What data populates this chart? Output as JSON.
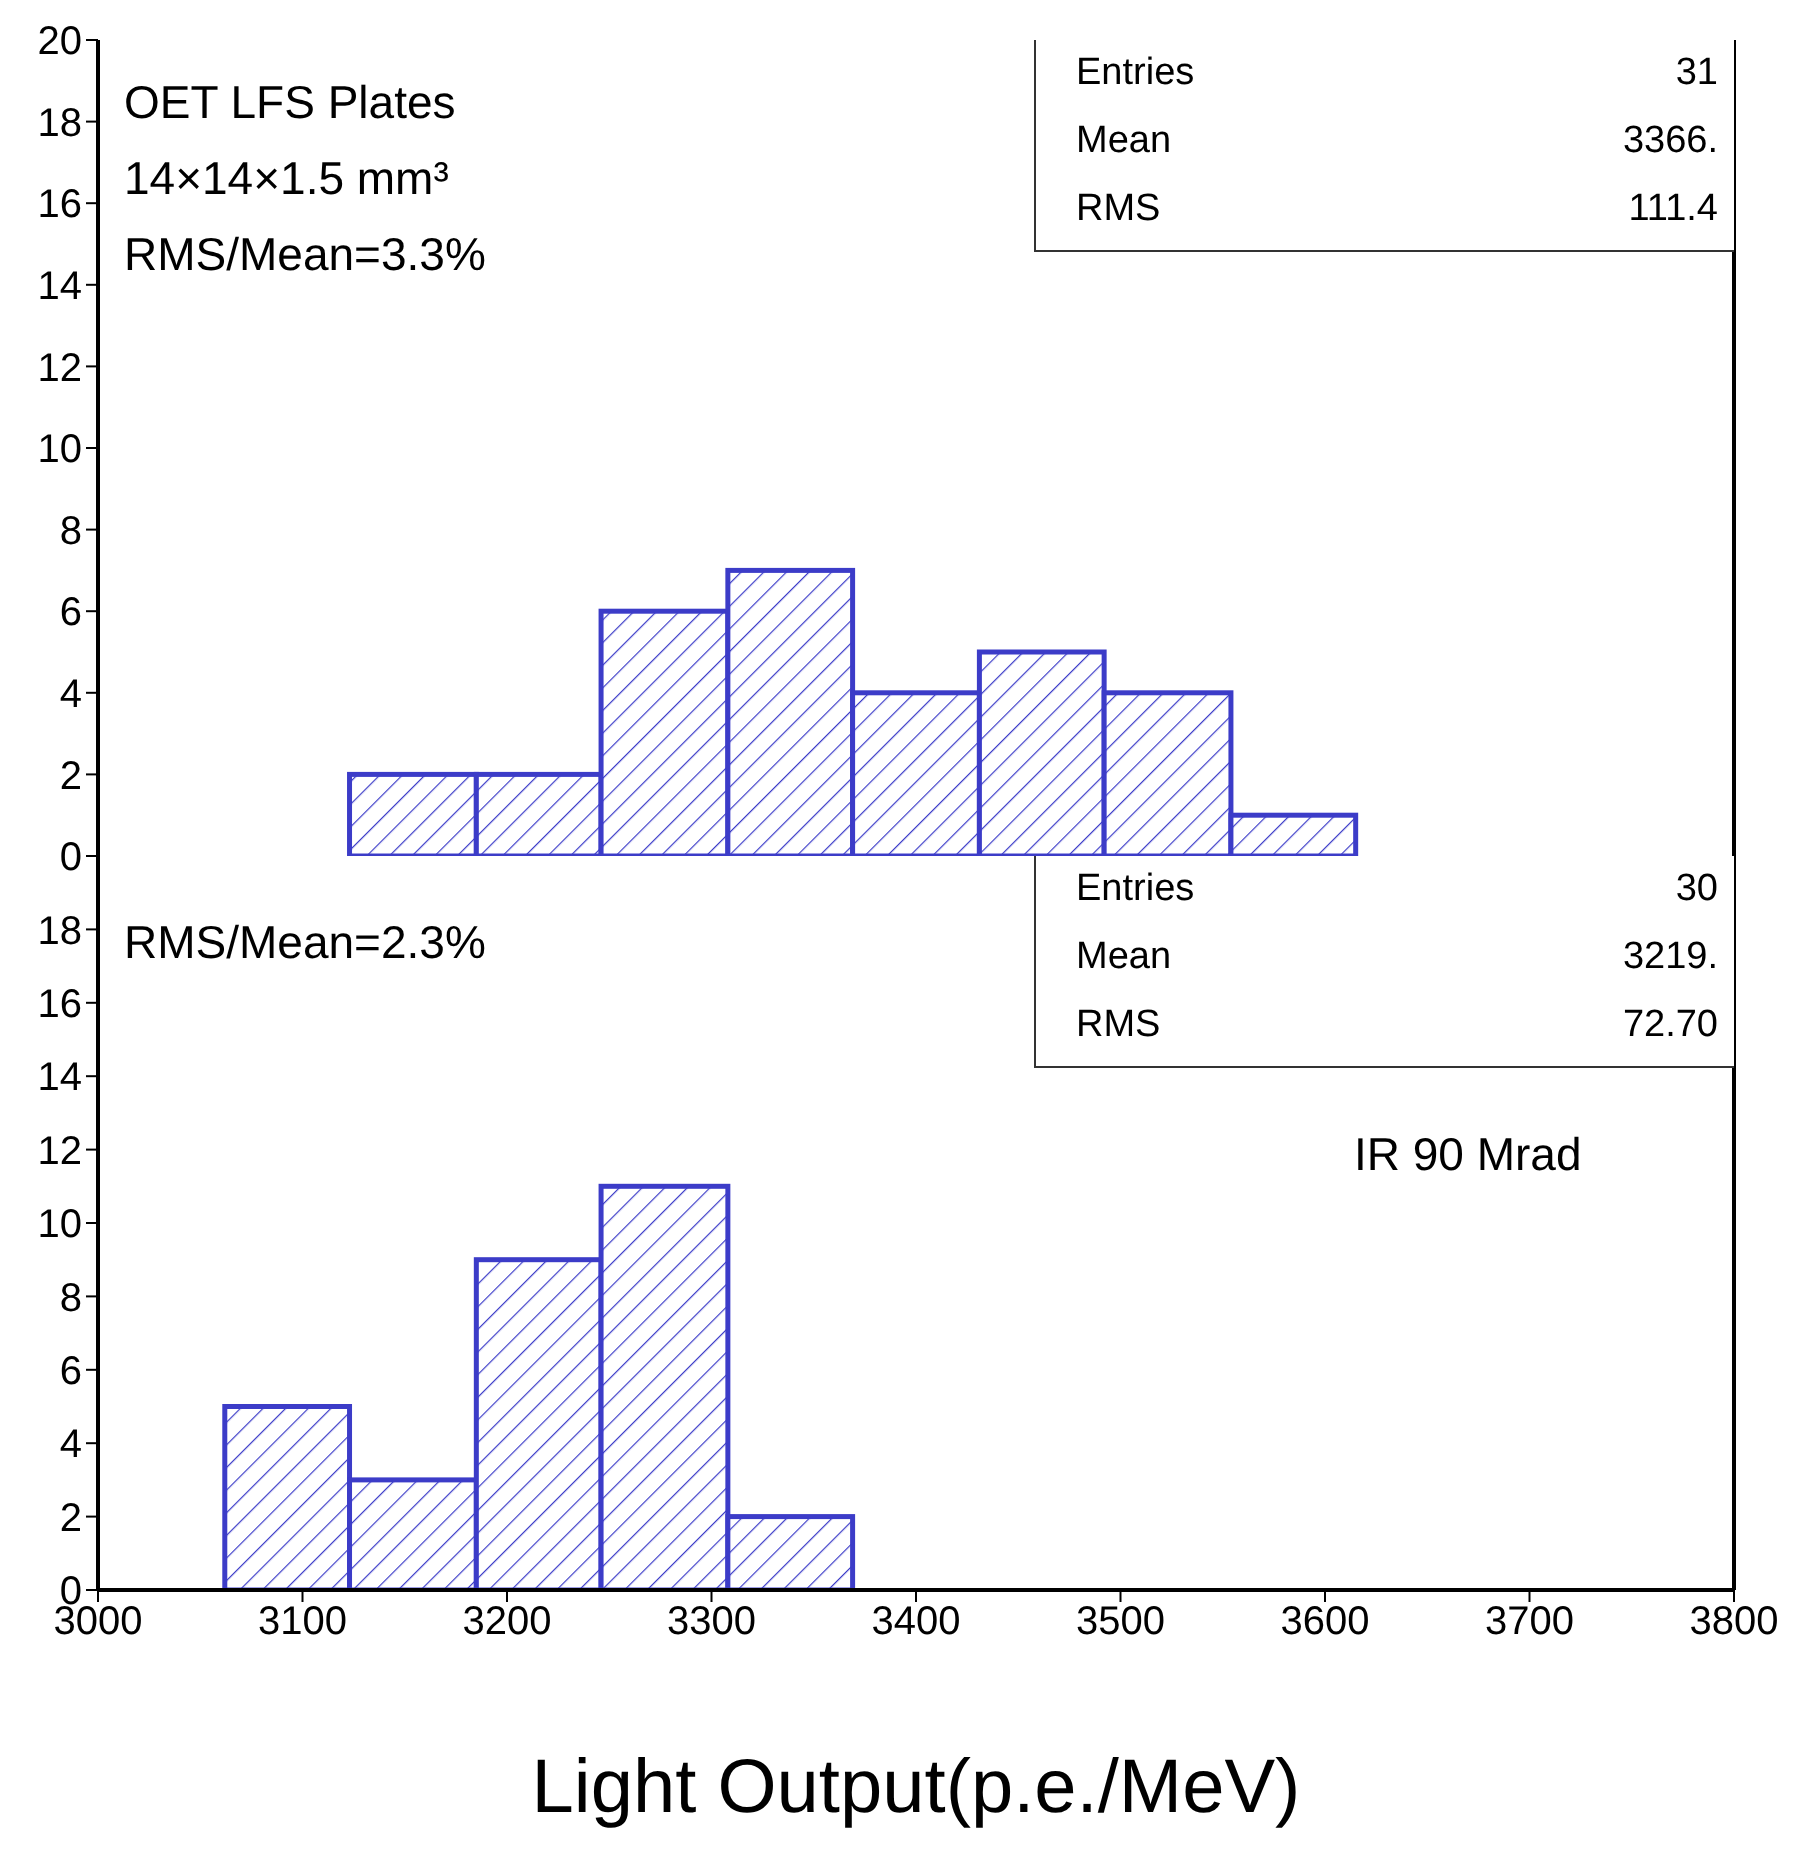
{
  "chart_data": [
    {
      "type": "histogram",
      "bins": [
        3123,
        3185,
        3246,
        3308,
        3369,
        3431,
        3492,
        3554,
        3615
      ],
      "values": [
        2,
        2,
        6,
        7,
        4,
        5,
        4,
        1
      ],
      "color": "#3c3cc8",
      "xlim": [
        3000,
        3800
      ],
      "xticks": [
        3000,
        3100,
        3200,
        3300,
        3400,
        3500,
        3600,
        3700,
        3800
      ],
      "ylim": [
        0,
        20
      ],
      "yticks": [
        0,
        2,
        4,
        6,
        8,
        10,
        12,
        14,
        16,
        18,
        20
      ],
      "tick_labels": "y",
      "annotations": [
        "Entries",
        "31",
        "Mean",
        "3366.",
        "RMS",
        "111.4",
        "OET LFS Plates",
        "14×14×1.5 mm³",
        "RMS/Mean=3.3%"
      ]
    },
    {
      "type": "histogram",
      "bins": [
        3062,
        3123,
        3185,
        3246,
        3308,
        3369
      ],
      "values": [
        5,
        3,
        9,
        11,
        2
      ],
      "color": "#3c3cc8",
      "xlim": [
        3000,
        3800
      ],
      "xticks": [
        3000,
        3100,
        3200,
        3300,
        3400,
        3500,
        3600,
        3700,
        3800
      ],
      "ylim": [
        0,
        20
      ],
      "yticks": [
        0,
        2,
        4,
        6,
        8,
        10,
        12,
        14,
        16,
        18
      ],
      "xlabel": "Light Output(p.e./MeV)",
      "annotations": [
        "Entries",
        "30",
        "Mean",
        "3219.",
        "RMS",
        "72.70",
        "RMS/Mean=2.3%",
        "IR 90 Mrad"
      ]
    }
  ]
}
